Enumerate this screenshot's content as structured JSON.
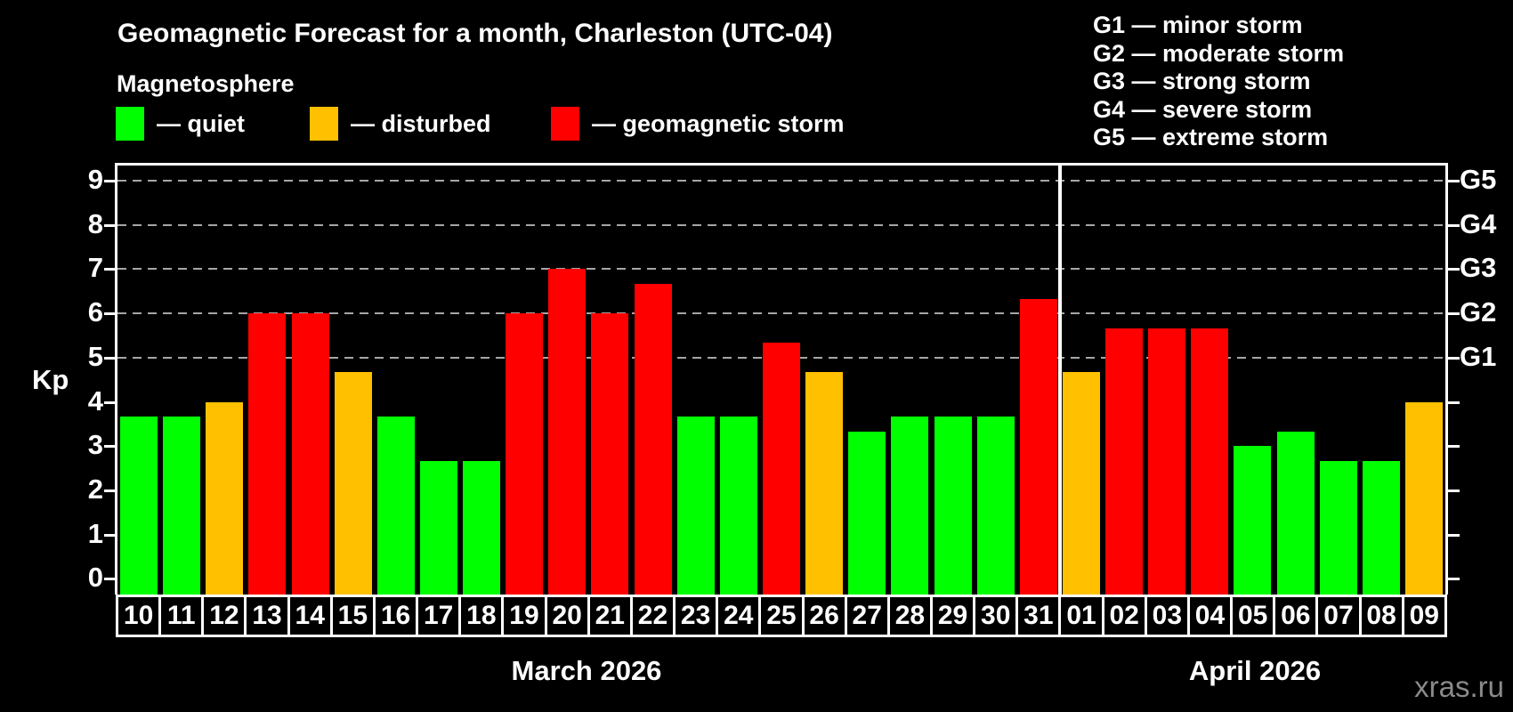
{
  "title": "Geomagnetic Forecast for a month, Charleston (UTC-04)",
  "subtitle": "Magnetosphere",
  "legend": {
    "items": [
      {
        "label": "— quiet",
        "status": "quiet",
        "color": "#00ff00"
      },
      {
        "label": "— disturbed",
        "status": "disturbed",
        "color": "#ffc000"
      },
      {
        "label": "— geomagnetic storm",
        "status": "storm",
        "color": "#ff0000"
      }
    ]
  },
  "storm_scale_legend": {
    "lines": [
      "G1 — minor storm",
      "G2 — moderate storm",
      "G3 — strong storm",
      "G4 — severe storm",
      "G5 — extreme storm"
    ]
  },
  "y_axis": {
    "label": "Kp",
    "ticks": [
      "0",
      "1",
      "2",
      "3",
      "4",
      "5",
      "6",
      "7",
      "8",
      "9"
    ]
  },
  "right_axis": {
    "labels": [
      {
        "text": "G5",
        "kp": 9
      },
      {
        "text": "G4",
        "kp": 8
      },
      {
        "text": "G3",
        "kp": 7
      },
      {
        "text": "G2",
        "kp": 6
      },
      {
        "text": "G1",
        "kp": 5
      }
    ]
  },
  "months": [
    {
      "label": "March 2026",
      "start_index": 0,
      "day_count": 22
    },
    {
      "label": "April 2026",
      "start_index": 22,
      "day_count": 9
    }
  ],
  "watermark": "xras.ru",
  "chart_data": {
    "type": "bar",
    "title": "Geomagnetic Forecast for a month, Charleston (UTC-04)",
    "ylabel": "Kp",
    "ylim": [
      0,
      9
    ],
    "gridlines_at": [
      5,
      6,
      7,
      8,
      9
    ],
    "grid": "dashed-horizontal",
    "legend_position": "top-left",
    "categories": [
      "10",
      "11",
      "12",
      "13",
      "14",
      "15",
      "16",
      "17",
      "18",
      "19",
      "20",
      "21",
      "22",
      "23",
      "24",
      "25",
      "26",
      "27",
      "28",
      "29",
      "30",
      "31",
      "01",
      "02",
      "03",
      "04",
      "05",
      "06",
      "07",
      "08",
      "09"
    ],
    "values": [
      3.67,
      3.67,
      4.0,
      6.0,
      6.0,
      4.67,
      3.67,
      2.67,
      2.67,
      6.0,
      7.0,
      6.0,
      6.67,
      3.67,
      3.67,
      5.33,
      4.67,
      3.33,
      3.67,
      3.67,
      3.67,
      6.33,
      4.67,
      5.67,
      5.67,
      5.67,
      3.0,
      3.33,
      2.67,
      2.67,
      4.0
    ],
    "statuses": [
      "quiet",
      "quiet",
      "disturbed",
      "storm",
      "storm",
      "disturbed",
      "quiet",
      "quiet",
      "quiet",
      "storm",
      "storm",
      "storm",
      "storm",
      "quiet",
      "quiet",
      "storm",
      "disturbed",
      "quiet",
      "quiet",
      "quiet",
      "quiet",
      "storm",
      "disturbed",
      "storm",
      "storm",
      "storm",
      "quiet",
      "quiet",
      "quiet",
      "quiet",
      "disturbed"
    ],
    "colors": {
      "quiet": "#00ff00",
      "disturbed": "#ffc000",
      "storm": "#ff0000"
    },
    "month_separator_after_index": 21
  }
}
